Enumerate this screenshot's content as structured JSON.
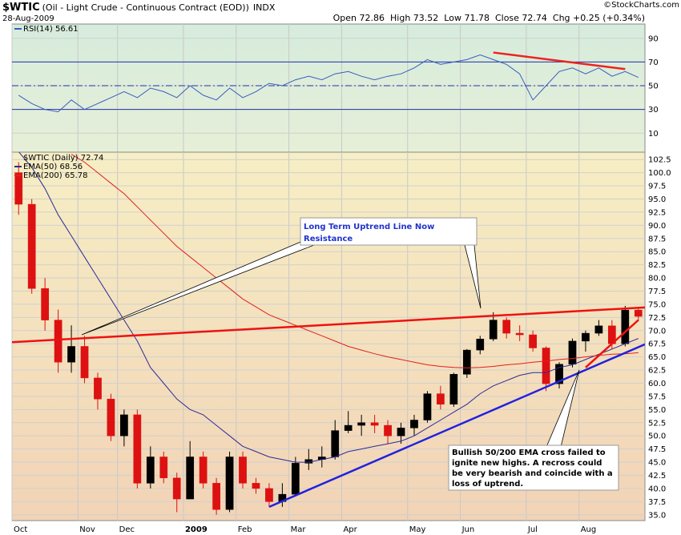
{
  "header": {
    "title": "$WTIC",
    "subtitle": "(Oil - Light Crude - Continuous Contract (EOD))",
    "exchange": "INDX",
    "date": "28-Aug-2009",
    "credit": "©StockCharts.com",
    "quote": [
      "Open 72.86",
      "High 73.52",
      "Low 71.78",
      "Close 72.74",
      "Chg +0.25 (+0.34%)"
    ]
  },
  "chart_data": [
    {
      "type": "line",
      "series": [
        {
          "name": "RSI(14) 56.61",
          "color": "#3a5cc0",
          "values": [
            42,
            35,
            30,
            28,
            38,
            30,
            35,
            40,
            45,
            40,
            48,
            45,
            40,
            50,
            42,
            38,
            48,
            40,
            45,
            52,
            50,
            55,
            58,
            55,
            60,
            62,
            58,
            55,
            58,
            60,
            65,
            72,
            68,
            70,
            72,
            76,
            72,
            68,
            60,
            38,
            50,
            62,
            65,
            60,
            65,
            58,
            62,
            57
          ]
        }
      ],
      "ylim": [
        -6,
        102
      ],
      "yticks": [
        10,
        30,
        50,
        70,
        90
      ],
      "reference_lines": [
        {
          "value": 30,
          "style": "solid"
        },
        {
          "value": 50,
          "style": "dash"
        },
        {
          "value": 70,
          "style": "solid"
        }
      ],
      "trendlines": [
        {
          "color": "#ee2222",
          "from": [
            36,
            78
          ],
          "to": [
            46,
            64
          ]
        }
      ],
      "background": [
        "#d6ecdc",
        "#e6efd8"
      ]
    },
    {
      "type": "candlestick",
      "name": "$WTIC (Daily) 72.74",
      "categories": [
        "Oct",
        null,
        null,
        null,
        null,
        "Nov",
        null,
        null,
        "Dec",
        null,
        null,
        null,
        null,
        "2009",
        null,
        null,
        null,
        "Feb",
        null,
        null,
        null,
        "Mar",
        null,
        null,
        null,
        "Apr",
        null,
        null,
        null,
        null,
        "May",
        null,
        null,
        null,
        "Jun",
        null,
        null,
        null,
        null,
        "Jul",
        null,
        null,
        null,
        "Aug",
        null,
        null,
        null,
        null
      ],
      "open": [
        100,
        94,
        78,
        72,
        64,
        67,
        61,
        57,
        50,
        54,
        41,
        46,
        42,
        38,
        46,
        41,
        36,
        46,
        41,
        40,
        37.5,
        38.9,
        44.8,
        45.5,
        46,
        51,
        52,
        52.5,
        52,
        50,
        51.5,
        53,
        58,
        56,
        61.7,
        66.3,
        68.4,
        72,
        69.5,
        69.2,
        66.7,
        59.9,
        63.6,
        68,
        69.5,
        70.9,
        67.5,
        73.9
      ],
      "high": [
        102,
        95,
        80,
        74,
        71,
        69,
        62,
        58,
        55,
        55,
        48,
        47,
        43,
        49,
        47,
        42,
        47,
        47,
        42,
        41,
        41,
        46,
        47.5,
        48,
        53,
        54.7,
        54,
        54,
        53,
        52.5,
        54,
        58.5,
        59.5,
        62,
        66.5,
        69,
        73.5,
        72.5,
        71,
        70,
        67,
        64,
        68.5,
        70,
        72,
        72,
        74.7,
        74.5
      ],
      "low": [
        92,
        77,
        70,
        62,
        62,
        60,
        55,
        49,
        48,
        40,
        40,
        41,
        35.5,
        38,
        40,
        35,
        35.5,
        40,
        39,
        36.5,
        36.5,
        38.5,
        43.5,
        44,
        45.5,
        50.5,
        50,
        50.5,
        48.5,
        48.5,
        50,
        52.5,
        55,
        55.5,
        61,
        65.5,
        68,
        68.5,
        68,
        66,
        58.5,
        59,
        63,
        66,
        69,
        66.5,
        67,
        71.8
      ],
      "close": [
        94,
        78,
        72,
        64,
        67,
        61,
        57,
        50,
        54,
        41,
        46,
        42,
        38,
        46,
        41,
        36,
        46,
        41,
        40,
        37.5,
        38.9,
        44.8,
        45.5,
        46,
        51,
        52,
        52.5,
        52,
        50,
        51.5,
        53,
        58,
        56,
        61.7,
        66.3,
        68.4,
        72,
        69.5,
        69.2,
        66.7,
        59.9,
        63.6,
        68,
        69.5,
        70.9,
        67.5,
        73.9,
        72.7
      ],
      "up_color": "#000000",
      "down_color": "#dd1111",
      "series": [
        {
          "name": "EMA(50) 68.56",
          "color": "#2b2b9a",
          "values": [
            104,
            101,
            97,
            92,
            88,
            84,
            80,
            76,
            72,
            68,
            63,
            60,
            57,
            55,
            54,
            52,
            50,
            48,
            47,
            46,
            45.5,
            45,
            45,
            45.5,
            46,
            47,
            47.5,
            48,
            48.5,
            49,
            50,
            51.5,
            53,
            54.5,
            56,
            58,
            59.5,
            60.5,
            61.5,
            62,
            62,
            63,
            63.5,
            64.5,
            65.5,
            66.5,
            67.5,
            68.5
          ]
        },
        {
          "name": "EMA(200) 65.78",
          "color": "#e02020",
          "values": [
            null,
            null,
            null,
            null,
            103.5,
            102,
            100,
            98,
            96,
            93.5,
            91,
            88.5,
            86,
            84,
            82,
            80,
            78,
            76,
            74.5,
            73,
            72,
            71,
            70,
            69,
            68,
            67,
            66.3,
            65.6,
            65,
            64.5,
            64,
            63.5,
            63.2,
            63,
            62.9,
            63,
            63.2,
            63.5,
            63.7,
            64,
            64.2,
            64.5,
            64.7,
            65,
            65.3,
            65.5,
            65.6,
            65.8
          ]
        }
      ],
      "ylim": [
        33.9,
        103.9
      ],
      "yticks": [
        {
          "value": 35,
          "label": "35.0"
        },
        37.5,
        {
          "value": 40,
          "label": "40.0"
        },
        42.5,
        {
          "value": 45,
          "label": "45.0"
        },
        47.5,
        {
          "value": 50,
          "label": "50.0"
        },
        52.5,
        {
          "value": 55,
          "label": "55.0"
        },
        57.5,
        {
          "value": 60,
          "label": "60.0"
        },
        62.5,
        {
          "value": 65,
          "label": "65.0"
        },
        67.5,
        {
          "value": 70,
          "label": "70.0"
        },
        72.5,
        {
          "value": 75,
          "label": "75.0"
        },
        77.5,
        {
          "value": 80,
          "label": "80.0"
        },
        82.5,
        {
          "value": 85,
          "label": "85.0"
        },
        87.5,
        {
          "value": 90,
          "label": "90.0"
        },
        92.5,
        {
          "value": 95,
          "label": "95.0"
        },
        97.5,
        {
          "value": 100,
          "label": "100.0"
        },
        102.5
      ],
      "trendlines": [
        {
          "color": "#ee1111",
          "from": [
            -0.5,
            67.8
          ],
          "to": [
            47.5,
            74.4
          ]
        },
        {
          "color": "#2222dd",
          "from": [
            19,
            36.5
          ],
          "to": [
            47.5,
            67.4
          ]
        },
        {
          "color": "#ee1111",
          "from": [
            43,
            63
          ],
          "to": [
            47,
            72
          ]
        }
      ],
      "annotations": [
        {
          "lines": [
            "Long Term Uptrend Line Now",
            "Resistance"
          ]
        },
        {
          "lines": [
            "Bullish 50/200 EMA cross failed to",
            "ignite new highs.  A recross could",
            "be very bearish and coincide with a",
            "loss of uptrend."
          ]
        }
      ],
      "background": [
        "#f6eec4",
        "#f2d3b6"
      ]
    }
  ]
}
